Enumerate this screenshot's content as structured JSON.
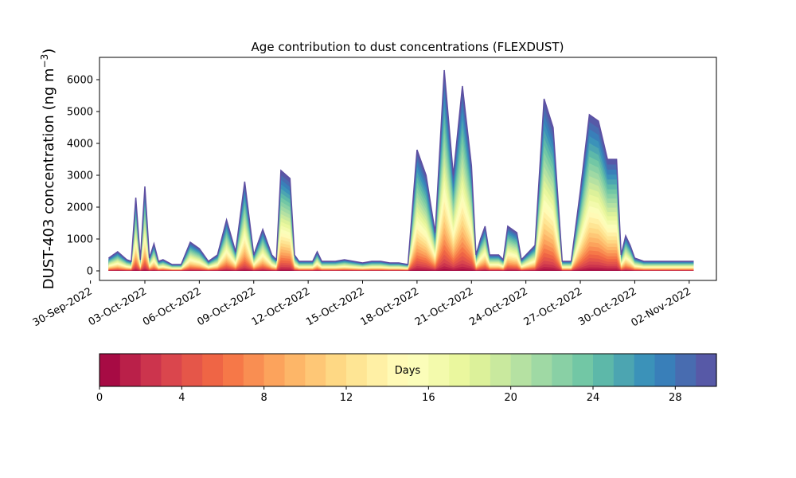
{
  "chart_data": {
    "type": "area",
    "title": "Age contribution to dust concentrations (FLEXDUST)",
    "ylabel_main": "DUST-403 concentration (ng m",
    "ylabel_sup": "−3",
    "ylabel_close": ")",
    "xlabel": "",
    "ylim": [
      -300,
      6700
    ],
    "yticks": [
      0,
      1000,
      2000,
      3000,
      4000,
      5000,
      6000
    ],
    "ytick_labels": [
      "0",
      "1000",
      "2000",
      "3000",
      "4000",
      "5000",
      "6000"
    ],
    "x_tick_dates": [
      "2022-09-30",
      "2022-10-03",
      "2022-10-06",
      "2022-10-09",
      "2022-10-12",
      "2022-10-15",
      "2022-10-18",
      "2022-10-21",
      "2022-10-24",
      "2022-10-27",
      "2022-10-30",
      "2022-11-02"
    ],
    "xtick_labels": [
      "30-Sep-2022",
      "03-Oct-2022",
      "06-Oct-2022",
      "09-Oct-2022",
      "12-Oct-2022",
      "15-Oct-2022",
      "18-Oct-2022",
      "21-Oct-2022",
      "24-Oct-2022",
      "27-Oct-2022",
      "30-Oct-2022",
      "02-Nov-2022"
    ],
    "xlim": [
      "2022-09-30T12:00",
      "2022-11-03T12:00"
    ],
    "time_axis": "date",
    "x": [
      "2022-10-01T00:00",
      "2022-10-01T12:00",
      "2022-10-02T00:00",
      "2022-10-02T06:00",
      "2022-10-02T12:00",
      "2022-10-02T18:00",
      "2022-10-03T00:00",
      "2022-10-03T06:00",
      "2022-10-03T12:00",
      "2022-10-03T18:00",
      "2022-10-04T00:00",
      "2022-10-04T12:00",
      "2022-10-05T00:00",
      "2022-10-05T12:00",
      "2022-10-06T00:00",
      "2022-10-06T12:00",
      "2022-10-07T00:00",
      "2022-10-07T12:00",
      "2022-10-08T00:00",
      "2022-10-08T12:00",
      "2022-10-09T00:00",
      "2022-10-09T12:00",
      "2022-10-10T00:00",
      "2022-10-10T06:00",
      "2022-10-10T12:00",
      "2022-10-11T00:00",
      "2022-10-11T06:00",
      "2022-10-11T12:00",
      "2022-10-12T00:00",
      "2022-10-12T06:00",
      "2022-10-12T12:00",
      "2022-10-12T18:00",
      "2022-10-13T00:00",
      "2022-10-13T12:00",
      "2022-10-14T00:00",
      "2022-10-14T12:00",
      "2022-10-15T00:00",
      "2022-10-15T12:00",
      "2022-10-16T00:00",
      "2022-10-16T12:00",
      "2022-10-17T00:00",
      "2022-10-17T12:00",
      "2022-10-18T00:00",
      "2022-10-18T12:00",
      "2022-10-19T00:00",
      "2022-10-19T12:00",
      "2022-10-20T00:00",
      "2022-10-20T12:00",
      "2022-10-21T00:00",
      "2022-10-21T06:00",
      "2022-10-21T12:00",
      "2022-10-21T18:00",
      "2022-10-22T00:00",
      "2022-10-22T06:00",
      "2022-10-22T12:00",
      "2022-10-22T18:00",
      "2022-10-23T00:00",
      "2022-10-23T06:00",
      "2022-10-23T12:00",
      "2022-10-23T18:00",
      "2022-10-24T00:00",
      "2022-10-24T12:00",
      "2022-10-25T00:00",
      "2022-10-25T12:00",
      "2022-10-26T00:00",
      "2022-10-26T12:00",
      "2022-10-27T00:00",
      "2022-10-27T12:00",
      "2022-10-28T00:00",
      "2022-10-28T12:00",
      "2022-10-29T00:00",
      "2022-10-29T06:00",
      "2022-10-29T12:00",
      "2022-10-29T18:00",
      "2022-10-30T00:00",
      "2022-10-30T12:00",
      "2022-10-31T00:00",
      "2022-10-31T06:00",
      "2022-10-31T12:00",
      "2022-10-31T18:00",
      "2022-11-01T00:00",
      "2022-11-01T06:00",
      "2022-11-01T12:00",
      "2022-11-01T18:00",
      "2022-11-02T00:00",
      "2022-11-02T06:00"
    ],
    "total": [
      400,
      600,
      350,
      300,
      2300,
      350,
      2650,
      400,
      850,
      300,
      350,
      200,
      200,
      900,
      700,
      300,
      500,
      1600,
      600,
      2800,
      500,
      1300,
      500,
      350,
      3150,
      2900,
      500,
      300,
      300,
      300,
      600,
      300,
      300,
      300,
      350,
      300,
      250,
      300,
      300,
      250,
      250,
      200,
      3800,
      3000,
      1200,
      6300,
      3000,
      5800,
      3300,
      500,
      1000,
      1400,
      500,
      500,
      500,
      350,
      1400,
      1300,
      1200,
      350,
      500,
      800,
      5400,
      4500,
      300,
      300,
      2500,
      4900,
      4700,
      3500,
      3500,
      500,
      1100,
      800,
      400,
      300,
      300,
      300,
      300,
      300,
      300,
      300,
      300,
      300,
      300,
      300
    ],
    "colorbar": {
      "label": "Days",
      "min": 0,
      "max": 30,
      "ticks": [
        0,
        4,
        8,
        12,
        16,
        20,
        24,
        28
      ],
      "tick_labels": [
        "0",
        "4",
        "8",
        "12",
        "16",
        "20",
        "24",
        "28"
      ],
      "colormap": "Spectral",
      "bins": 30
    }
  }
}
